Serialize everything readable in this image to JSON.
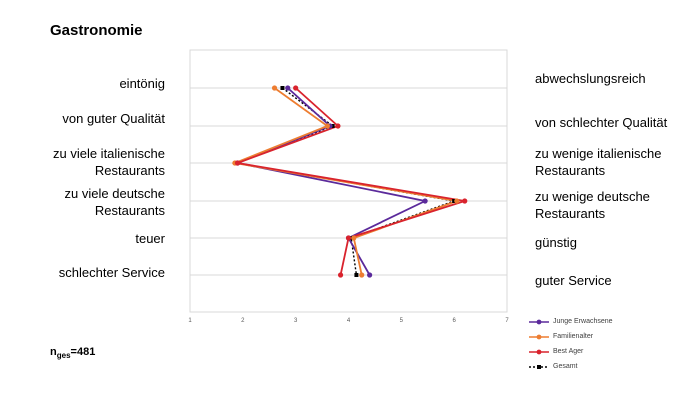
{
  "title": "Gastronomie",
  "n_label_prefix": "n",
  "n_label_sub": "ges",
  "n_label_value": "=481",
  "chart_data": {
    "type": "line",
    "orientation": "profile",
    "title": "Gastronomie",
    "left_labels": [
      "eintönig",
      "von guter Qualität",
      "zu viele italienische\nRestaurants",
      "zu viele deutsche\nRestaurants",
      "teuer",
      "schlechter Service"
    ],
    "right_labels": [
      "abwechslungsreich",
      "von schlechter Qualität",
      "zu wenige italienische\nRestaurants",
      "zu wenige deutsche\nRestaurants",
      "günstig",
      "guter Service"
    ],
    "xlim": [
      1,
      7
    ],
    "x_ticks": [
      "1",
      "2",
      "3",
      "4",
      "5",
      "6",
      "7"
    ],
    "grid": true,
    "legend_position": "bottom-right",
    "series": [
      {
        "name": "Junge Erwachsene",
        "color": "#5b2a9b",
        "values": [
          2.85,
          3.65,
          1.9,
          5.45,
          4.0,
          4.4
        ]
      },
      {
        "name": "Familienalter",
        "color": "#ed7d31",
        "values": [
          2.6,
          3.6,
          1.85,
          6.05,
          4.1,
          4.25
        ]
      },
      {
        "name": "Best Ager",
        "color": "#d9232d",
        "values": [
          3.0,
          3.8,
          1.9,
          6.2,
          4.0,
          3.85
        ]
      },
      {
        "name": "Gesamt",
        "color": "#000000",
        "dashed": true,
        "values": [
          2.75,
          3.7,
          1.9,
          6.0,
          4.05,
          4.15
        ]
      }
    ]
  }
}
